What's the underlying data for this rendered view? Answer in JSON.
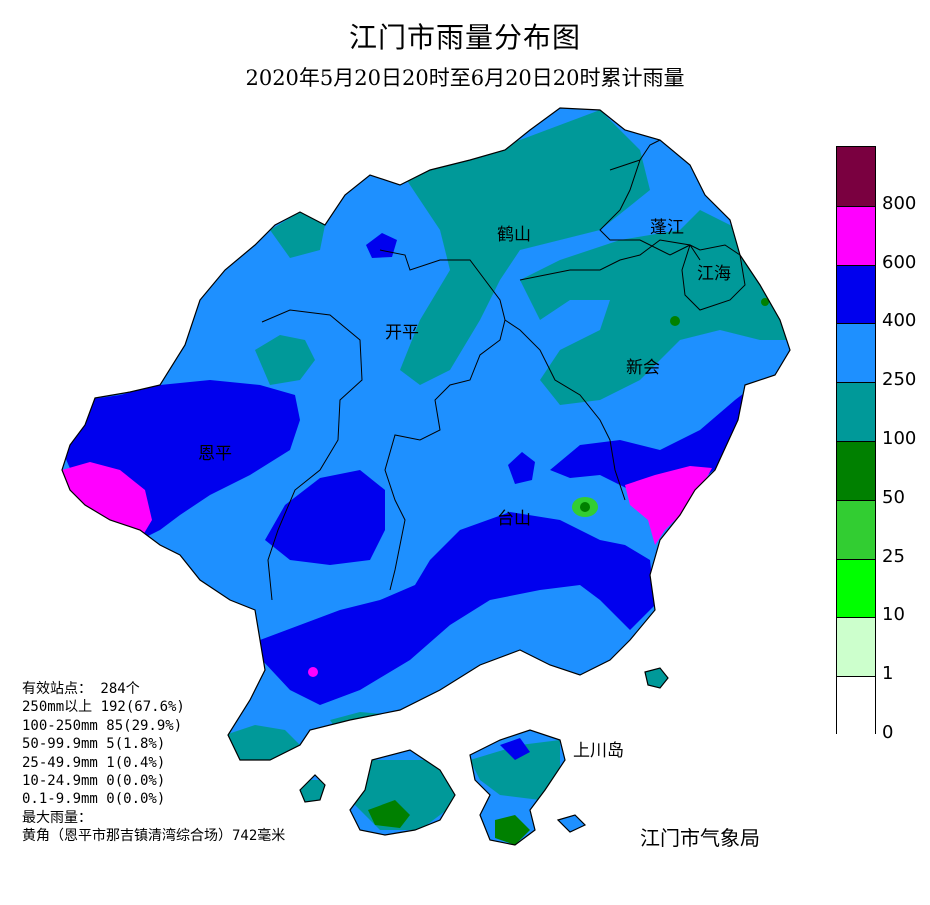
{
  "title": "江门市雨量分布图",
  "subtitle": "2020年5月20日20时至6月20日20时累计雨量",
  "places": {
    "heshan": "鹤山",
    "pengjiang": "蓬江",
    "jianghai": "江海",
    "kaiping": "开平",
    "xinhui": "新会",
    "enping": "恩平",
    "taishan": "台山",
    "shangchuan": "上川岛"
  },
  "legend": {
    "bins": [
      {
        "color": "#7a0040",
        "from": 800,
        "to": null
      },
      {
        "color": "#ff00ff",
        "from": 600,
        "to": 800
      },
      {
        "color": "#0000ee",
        "from": 400,
        "to": 600
      },
      {
        "color": "#1e90ff",
        "from": 250,
        "to": 400
      },
      {
        "color": "#009999",
        "from": 100,
        "to": 250
      },
      {
        "color": "#008000",
        "from": 50,
        "to": 100
      },
      {
        "color": "#32cd32",
        "from": 25,
        "to": 50
      },
      {
        "color": "#00ff00",
        "from": 10,
        "to": 25
      },
      {
        "color": "#ccffcc",
        "from": 1,
        "to": 10
      },
      {
        "color": "#ffffff",
        "from": 0,
        "to": 1
      }
    ],
    "labels": [
      "800",
      "600",
      "400",
      "250",
      "100",
      "50",
      "25",
      "10",
      "1",
      "0"
    ]
  },
  "stats": {
    "stations": "有效站点： 284个",
    "row_250": "250mm以上 192(67.6%)",
    "row_100": "100-250mm 85(29.9%)",
    "row_50": "50-99.9mm 5(1.8%)",
    "row_25": "25-49.9mm 1(0.4%)",
    "row_10": "10-24.9mm 0(0.0%)",
    "row_01": "0.1-9.9mm 0(0.0%)",
    "max_label": "最大雨量：",
    "max_value": "黄角（恩平市那吉镇清湾综合场）742毫米"
  },
  "agency": "江门市气象局"
}
